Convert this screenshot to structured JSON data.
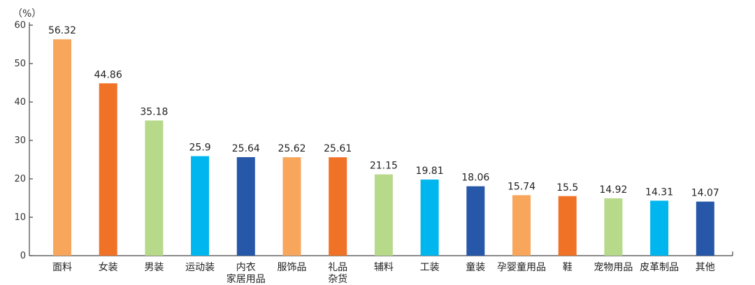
{
  "chart_data": {
    "type": "bar",
    "ylabel": "（%）",
    "ylim": [
      0,
      60
    ],
    "yticks": [
      0,
      10,
      20,
      30,
      40,
      50,
      60
    ],
    "grid": false,
    "categories": [
      [
        "面料"
      ],
      [
        "女装"
      ],
      [
        "男装"
      ],
      [
        "运动装"
      ],
      [
        "内衣",
        "家居用品"
      ],
      [
        "服饰品"
      ],
      [
        "礼品",
        "杂货"
      ],
      [
        "辅料"
      ],
      [
        "工装"
      ],
      [
        "童装"
      ],
      [
        "孕婴童用品"
      ],
      [
        "鞋"
      ],
      [
        "宠物用品"
      ],
      [
        "皮革制品"
      ],
      [
        "其他"
      ]
    ],
    "values": [
      56.32,
      44.86,
      35.18,
      25.9,
      25.64,
      25.62,
      25.61,
      21.15,
      19.81,
      18.06,
      15.74,
      15.5,
      14.92,
      14.31,
      14.07
    ],
    "value_labels": [
      "56.32",
      "44.86",
      "35.18",
      "25.9",
      "25.64",
      "25.62",
      "25.61",
      "21.15",
      "19.81",
      "18.06",
      "15.74",
      "15.5",
      "14.92",
      "14.31",
      "14.07"
    ],
    "colors": [
      "#f7a65c",
      "#f07226",
      "#b6d98a",
      "#00b6ee",
      "#2757a8",
      "#f7a65c",
      "#f07226",
      "#b6d98a",
      "#00b6ee",
      "#2757a8",
      "#f7a65c",
      "#f07226",
      "#b6d98a",
      "#00b6ee",
      "#2757a8"
    ],
    "axis_color": "#444444"
  }
}
